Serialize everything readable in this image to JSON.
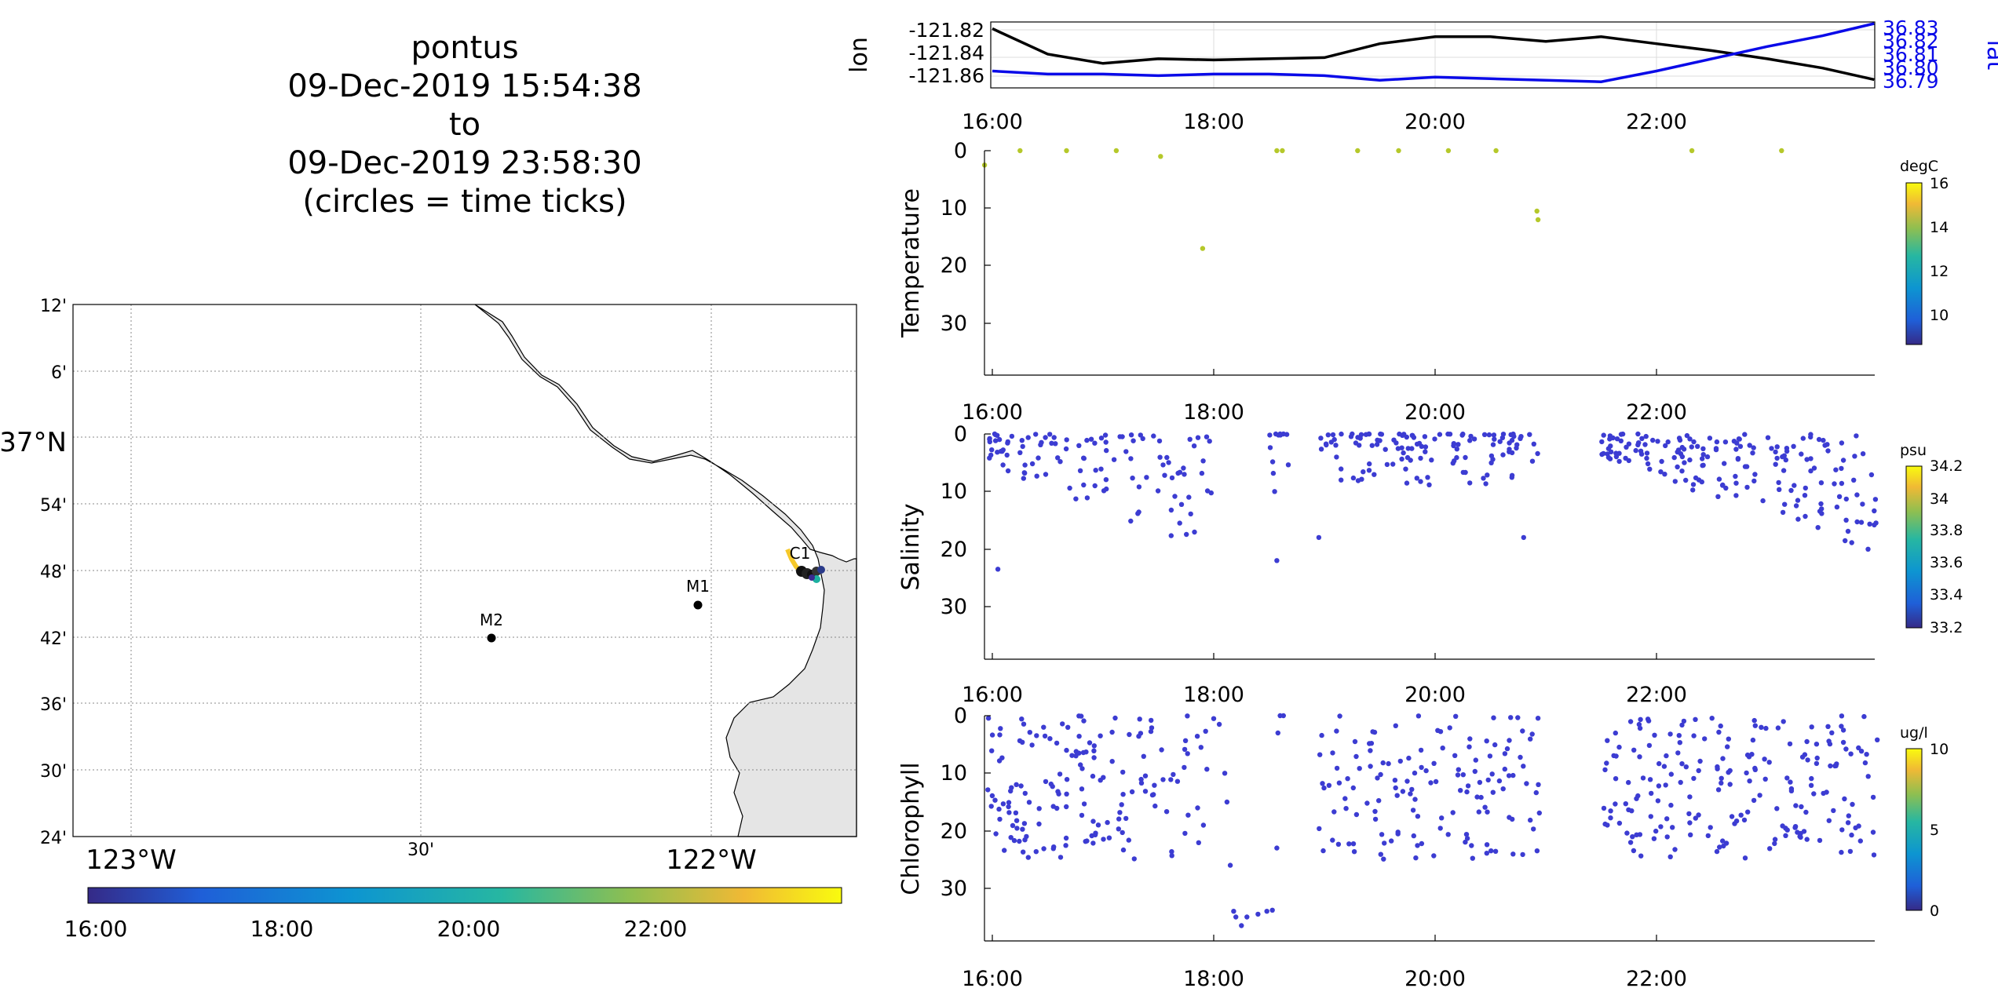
{
  "title": {
    "lines": [
      "pontus",
      "09-Dec-2019 15:54:38",
      "to",
      "09-Dec-2019 23:58:30",
      "(circles = time ticks)"
    ]
  },
  "map": {
    "lat_ticks": [
      "12'",
      "6'",
      "37°N",
      "54'",
      "48'",
      "42'",
      "36'",
      "30'",
      "24'"
    ],
    "lon_ticks": [
      "123°W",
      "30'",
      "122°W"
    ],
    "stations": [
      {
        "name": "M2",
        "lon": -122.39,
        "lat": 36.7
      },
      {
        "name": "M1",
        "lon": -122.02,
        "lat": 36.75
      },
      {
        "name": "C1",
        "lon": -121.85,
        "lat": 36.8
      }
    ],
    "time_colorbar_ticks": [
      "16:00",
      "18:00",
      "20:00",
      "22:00"
    ],
    "colors": {
      "land": "#e5e5e5",
      "ocean": "#ffffff",
      "station": "#000000"
    }
  },
  "time_ticks": [
    "16:00",
    "18:00",
    "20:00",
    "22:00"
  ],
  "chart_data": [
    {
      "type": "line",
      "panel": "position",
      "ylabel": "lon",
      "ylabel_right": "lat",
      "y_ticks": [
        "-121.82",
        "-121.84",
        "-121.86"
      ],
      "y_right_ticks": [
        "36.83",
        "36.82",
        "36.81",
        "36.80",
        "36.79"
      ],
      "x": [
        "16:00",
        "16:30",
        "17:00",
        "17:30",
        "18:00",
        "18:30",
        "19:00",
        "19:30",
        "20:00",
        "20:30",
        "21:00",
        "21:30",
        "22:00",
        "22:30",
        "23:00",
        "23:30",
        "23:58"
      ],
      "series": [
        {
          "name": "lon",
          "color": "#000000",
          "values": [
            -121.819,
            -121.841,
            -121.849,
            -121.845,
            -121.846,
            -121.845,
            -121.844,
            -121.832,
            -121.826,
            -121.826,
            -121.83,
            -121.826,
            -121.832,
            -121.838,
            -121.845,
            -121.853,
            -121.863
          ]
        },
        {
          "name": "lat",
          "color": "#0a0ae8",
          "values": [
            36.801,
            36.799,
            36.799,
            36.798,
            36.799,
            36.799,
            36.798,
            36.795,
            36.797,
            36.796,
            36.795,
            36.794,
            36.801,
            36.809,
            36.817,
            36.824,
            36.832
          ]
        }
      ]
    },
    {
      "type": "scatter",
      "panel": "temperature",
      "ylabel": "Temperature",
      "y_ticks": [
        "0",
        "10",
        "20",
        "30"
      ],
      "ylim": [
        0,
        39
      ],
      "colorbar": {
        "label": "degC",
        "ticks": [
          "16",
          "14",
          "12",
          "10"
        ],
        "range": [
          8.7,
          16
        ]
      },
      "color": "#b5c82a",
      "points": [
        [
          15.93,
          2.5
        ],
        [
          16.25,
          0
        ],
        [
          16.67,
          0
        ],
        [
          17.12,
          0
        ],
        [
          17.52,
          1
        ],
        [
          17.9,
          17
        ],
        [
          18.57,
          0
        ],
        [
          18.62,
          0
        ],
        [
          19.3,
          0
        ],
        [
          19.67,
          0
        ],
        [
          20.12,
          0
        ],
        [
          20.55,
          0
        ],
        [
          20.92,
          10.5
        ],
        [
          20.93,
          12
        ],
        [
          22.32,
          0
        ],
        [
          23.13,
          0
        ]
      ]
    },
    {
      "type": "scatter",
      "panel": "salinity",
      "ylabel": "Salinity",
      "y_ticks": [
        "0",
        "10",
        "20",
        "30"
      ],
      "ylim": [
        0,
        39
      ],
      "colorbar": {
        "label": "psu",
        "ticks": [
          "34.2",
          "34",
          "33.8",
          "33.6",
          "33.4",
          "33.2"
        ],
        "range": [
          33.15,
          34.25
        ]
      },
      "color": "#3c3cd2",
      "gaps": [
        [
          17.98,
          18.5
        ],
        [
          18.68,
          18.95
        ],
        [
          20.95,
          21.5
        ]
      ],
      "spot_points": [
        [
          18.55,
          10
        ],
        [
          18.57,
          22
        ],
        [
          18.6,
          0
        ],
        [
          18.63,
          0
        ],
        [
          16.05,
          23.5
        ],
        [
          18.95,
          18
        ],
        [
          20.8,
          18
        ]
      ]
    },
    {
      "type": "scatter",
      "panel": "chlorophyll",
      "ylabel": "Chlorophyll",
      "y_ticks": [
        "0",
        "10",
        "20",
        "30"
      ],
      "ylim": [
        0,
        39
      ],
      "colorbar": {
        "label": "ug/l",
        "ticks": [
          "10",
          "5",
          "0"
        ],
        "range": [
          0,
          10
        ]
      },
      "color": "#3c3cd2",
      "gaps": [
        [
          17.95,
          18.95
        ],
        [
          20.95,
          21.5
        ]
      ],
      "spot_points": [
        [
          18.0,
          0.5
        ],
        [
          18.05,
          1.5
        ],
        [
          18.1,
          10
        ],
        [
          18.12,
          15
        ],
        [
          18.15,
          26
        ],
        [
          18.18,
          34
        ],
        [
          18.2,
          35
        ],
        [
          18.25,
          36.5
        ],
        [
          18.3,
          35
        ],
        [
          18.4,
          34.5
        ],
        [
          18.48,
          34
        ],
        [
          18.53,
          33.8
        ],
        [
          18.57,
          23
        ],
        [
          18.58,
          3
        ],
        [
          18.6,
          0
        ],
        [
          18.63,
          0
        ]
      ]
    }
  ]
}
